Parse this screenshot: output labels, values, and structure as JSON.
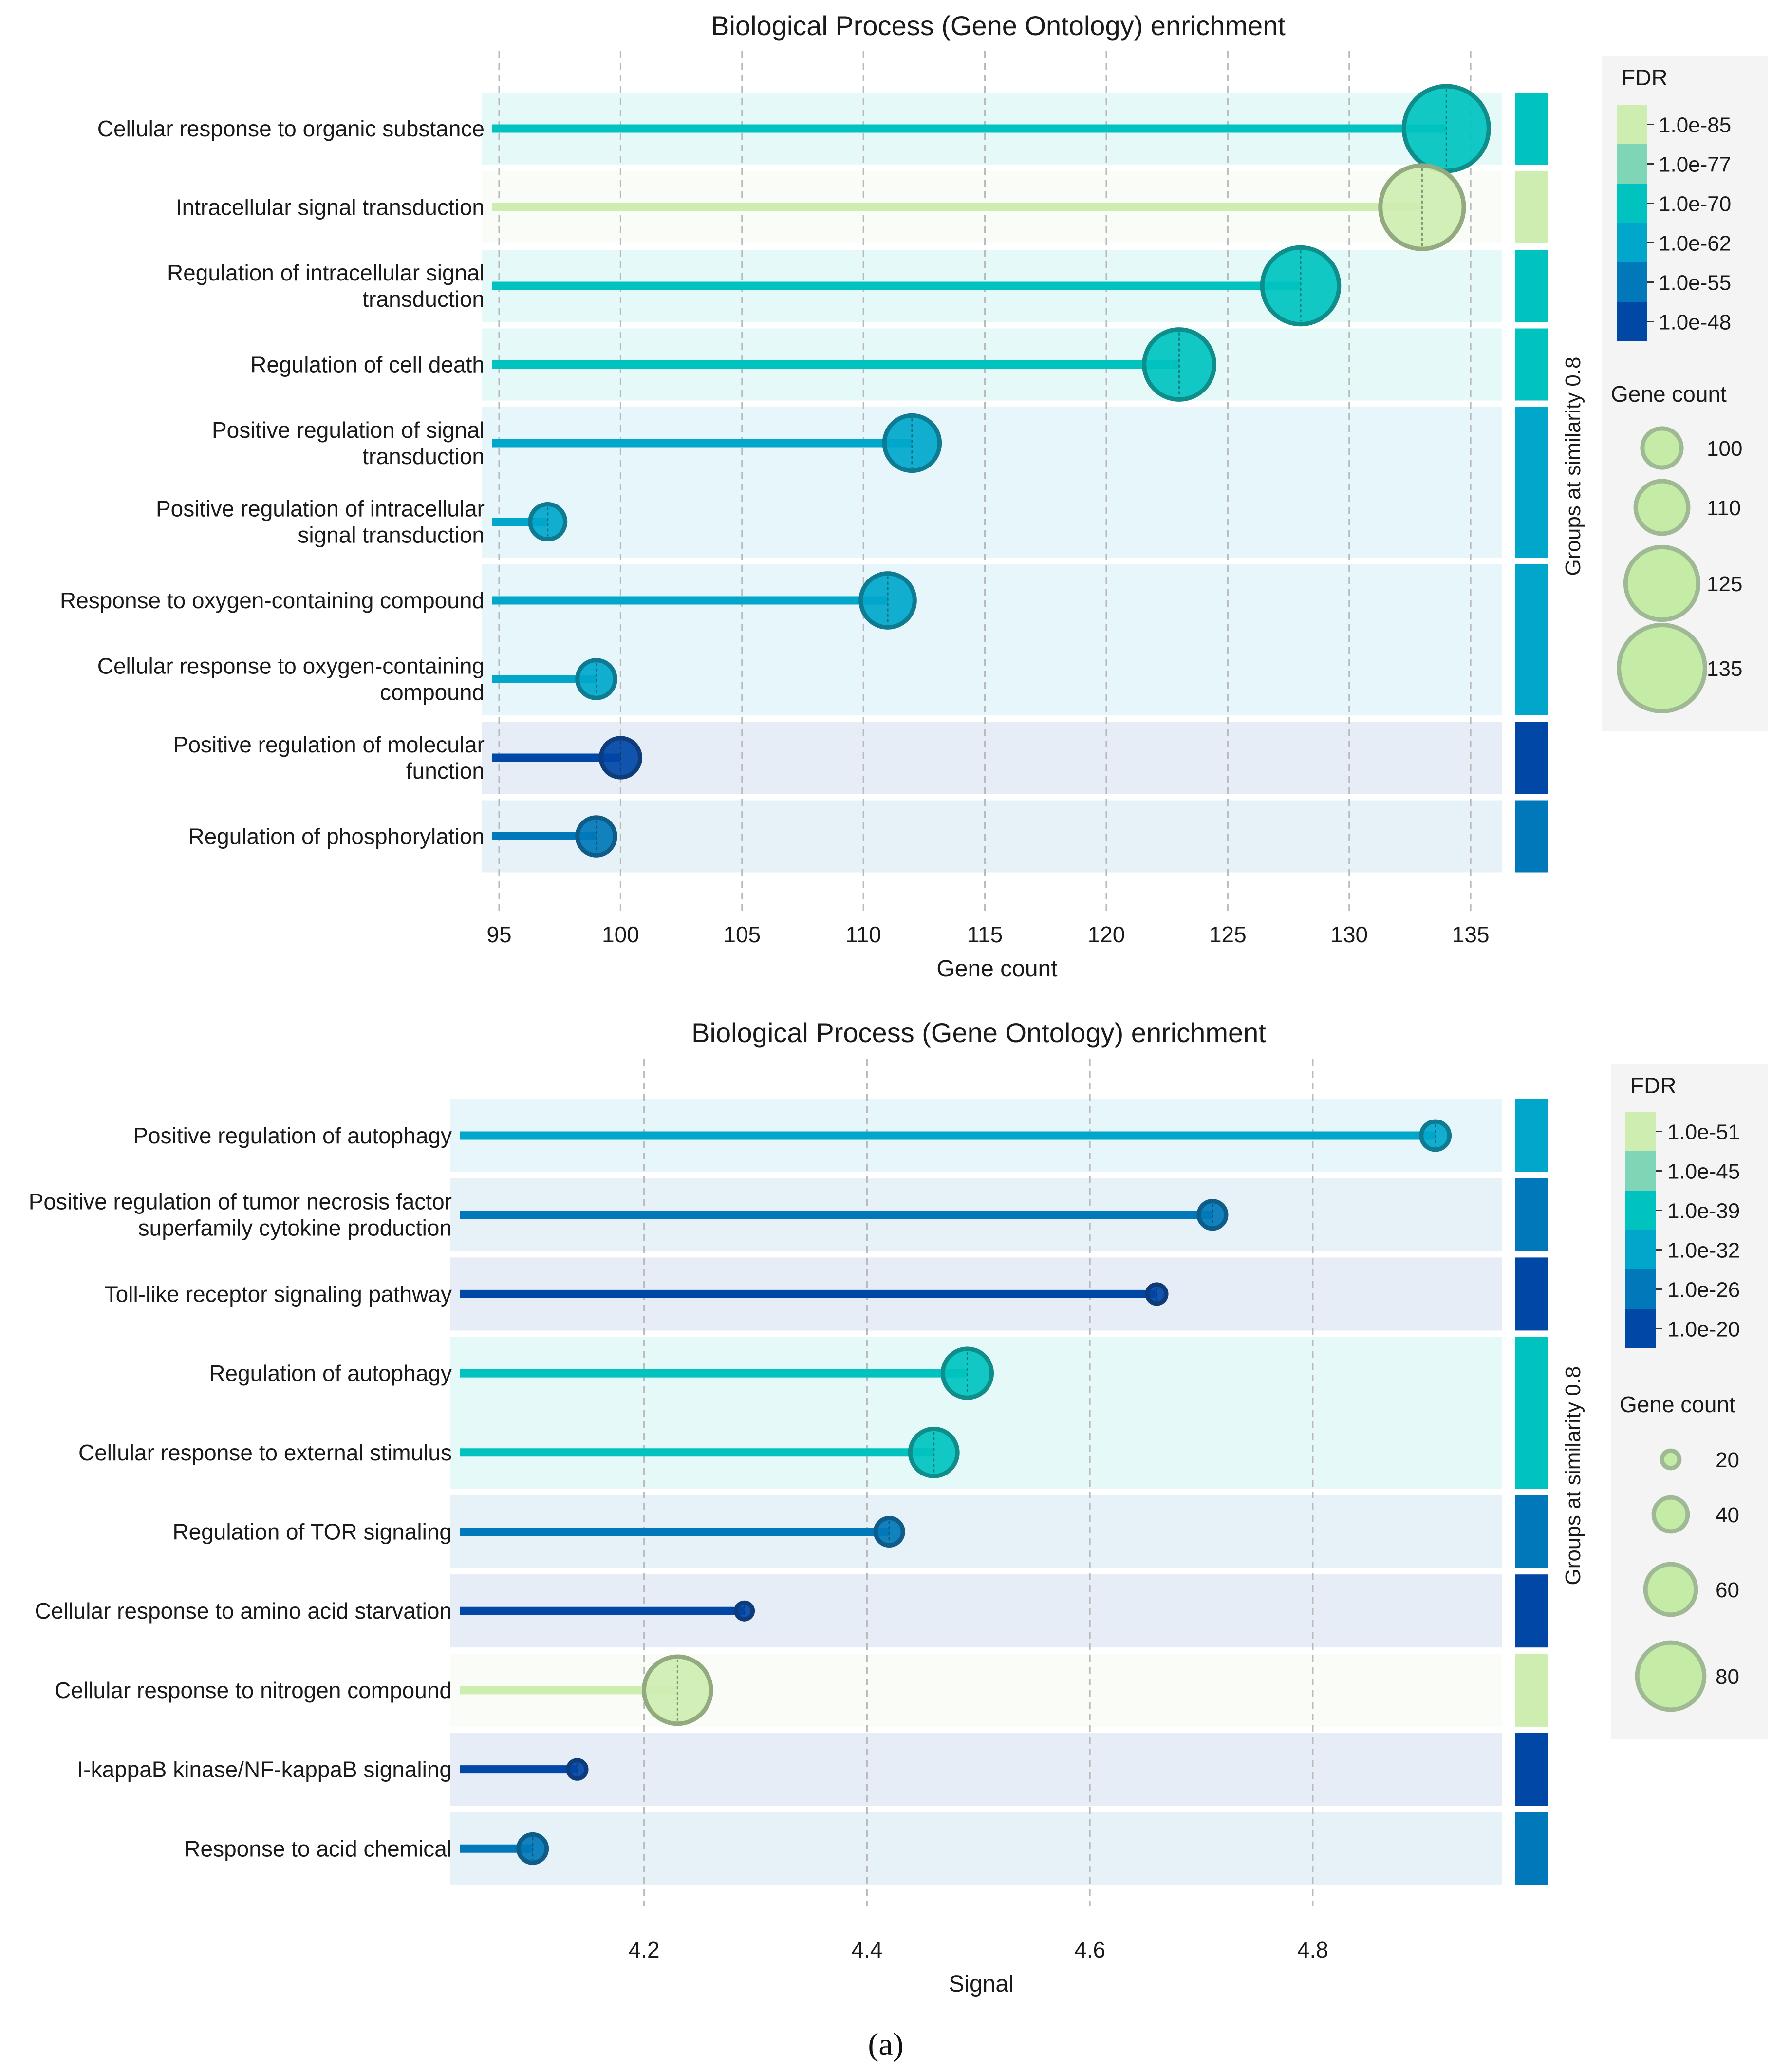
{
  "caption": "(a)",
  "chart_data": [
    {
      "type": "lollipop",
      "title": "Biological Process (Gene Ontology) enrichment",
      "xlabel": "Gene count",
      "xlim": [
        94.7,
        136.3
      ],
      "xticks": [
        95,
        100,
        105,
        110,
        115,
        120,
        125,
        130,
        135
      ],
      "group_axis_label": "Groups at similarity 0.8",
      "fdr_legend_title": "FDR",
      "fdr_levels": [
        {
          "label": "1.0e-85",
          "color": "#cdeeb0"
        },
        {
          "label": "1.0e-77",
          "color": "#7fd6b7"
        },
        {
          "label": "1.0e-70",
          "color": "#00c3c0"
        },
        {
          "label": "1.0e-62",
          "color": "#00a7cb"
        },
        {
          "label": "1.0e-55",
          "color": "#0078ba"
        },
        {
          "label": "1.0e-48",
          "color": "#0047a6"
        }
      ],
      "size_legend_title": "Gene count",
      "size_legend": [
        100,
        110,
        125,
        135
      ],
      "terms": [
        {
          "label": "Cellular response to organic substance",
          "value": 134,
          "gene_count": 134,
          "fdr_level": 2,
          "group": 0
        },
        {
          "label": "Intracellular signal transduction",
          "value": 133,
          "gene_count": 133,
          "fdr_level": 0,
          "group": 1
        },
        {
          "label": "Regulation of intracellular signal transduction",
          "value": 128,
          "gene_count": 128,
          "fdr_level": 2,
          "group": 2
        },
        {
          "label": "Regulation of cell death",
          "value": 123,
          "gene_count": 123,
          "fdr_level": 2,
          "group": 3
        },
        {
          "label": "Positive regulation of signal transduction",
          "value": 112,
          "gene_count": 112,
          "fdr_level": 3,
          "group": 4
        },
        {
          "label": "Positive regulation of intracellular signal transduction",
          "value": 97,
          "gene_count": 97,
          "fdr_level": 3,
          "group": 4
        },
        {
          "label": "Response to oxygen-containing compound",
          "value": 111,
          "gene_count": 111,
          "fdr_level": 3,
          "group": 5
        },
        {
          "label": "Cellular response to oxygen-containing compound",
          "value": 99,
          "gene_count": 99,
          "fdr_level": 3,
          "group": 5
        },
        {
          "label": "Positive regulation of molecular function",
          "value": 100,
          "gene_count": 100,
          "fdr_level": 5,
          "group": 6
        },
        {
          "label": "Regulation of phosphorylation",
          "value": 99,
          "gene_count": 99,
          "fdr_level": 4,
          "group": 7
        }
      ]
    },
    {
      "type": "lollipop",
      "title": "Biological Process (Gene Ontology) enrichment",
      "xlabel": "Signal",
      "xlim": [
        4.035,
        4.97
      ],
      "xticks": [
        4.2,
        4.4,
        4.6,
        4.8
      ],
      "group_axis_label": "Groups at similarity 0.8",
      "fdr_legend_title": "FDR",
      "fdr_levels": [
        {
          "label": "1.0e-51",
          "color": "#cdeeb0"
        },
        {
          "label": "1.0e-45",
          "color": "#7fd6b7"
        },
        {
          "label": "1.0e-39",
          "color": "#00c3c0"
        },
        {
          "label": "1.0e-32",
          "color": "#00a7cb"
        },
        {
          "label": "1.0e-26",
          "color": "#0078ba"
        },
        {
          "label": "1.0e-20",
          "color": "#0047a6"
        }
      ],
      "size_legend_title": "Gene count",
      "size_legend": [
        20,
        40,
        60,
        80
      ],
      "terms": [
        {
          "label": "Positive regulation of autophagy",
          "value": 4.91,
          "gene_count": 33,
          "fdr_level": 3,
          "group": 0
        },
        {
          "label": "Positive regulation of tumor necrosis factor superfamily cytokine production",
          "value": 4.71,
          "gene_count": 32,
          "fdr_level": 4,
          "group": 1
        },
        {
          "label": "Toll-like receptor signaling pathway",
          "value": 4.66,
          "gene_count": 22,
          "fdr_level": 5,
          "group": 2
        },
        {
          "label": "Regulation of autophagy",
          "value": 4.49,
          "gene_count": 58,
          "fdr_level": 2,
          "group": 3
        },
        {
          "label": "Cellular response to external stimulus",
          "value": 4.46,
          "gene_count": 56,
          "fdr_level": 2,
          "group": 3
        },
        {
          "label": "Regulation of TOR signaling",
          "value": 4.42,
          "gene_count": 32,
          "fdr_level": 4,
          "group": 4
        },
        {
          "label": "Cellular response to amino acid starvation",
          "value": 4.29,
          "gene_count": 19,
          "fdr_level": 5,
          "group": 5
        },
        {
          "label": "Cellular response to nitrogen compound",
          "value": 4.23,
          "gene_count": 80,
          "fdr_level": 0,
          "group": 6
        },
        {
          "label": "I-kappaB kinase/NF-kappaB signaling",
          "value": 4.14,
          "gene_count": 21,
          "fdr_level": 5,
          "group": 7
        },
        {
          "label": "Response to acid chemical",
          "value": 4.1,
          "gene_count": 33,
          "fdr_level": 4,
          "group": 8
        }
      ]
    }
  ]
}
